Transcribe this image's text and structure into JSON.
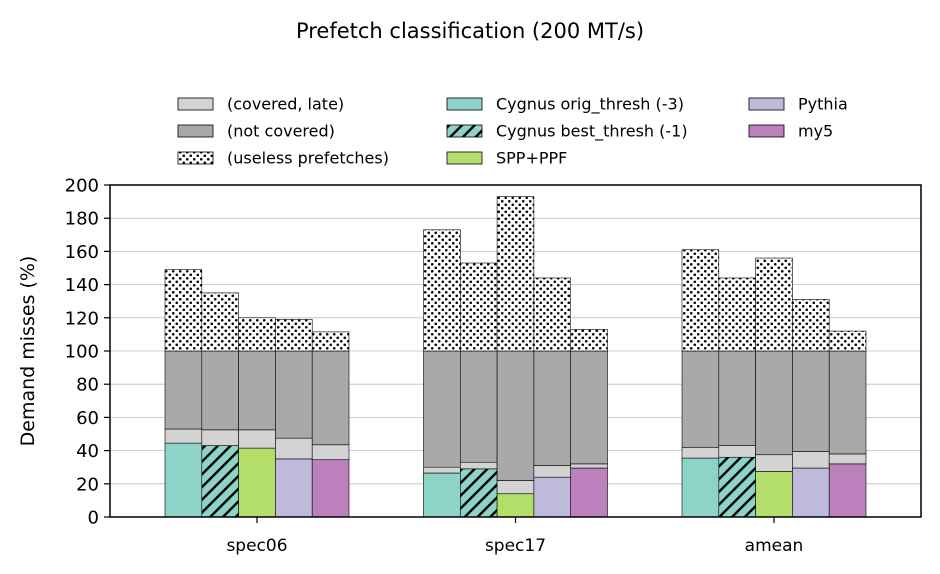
{
  "chart_data": {
    "type": "bar",
    "subtype": "stacked-grouped",
    "title": "Prefetch classification (200 MT/s)",
    "ylabel": "Demand misses (%)",
    "xlabel": "",
    "ylim": [
      0,
      200
    ],
    "yticks": [
      0,
      20,
      40,
      60,
      80,
      100,
      120,
      140,
      160,
      180,
      200
    ],
    "grid": "horizontal",
    "legend_position": "top",
    "categories": [
      "spec06",
      "spec17",
      "amean"
    ],
    "stack_components": [
      {
        "name": "(covered, late)",
        "color": "#d3d3d3",
        "pattern": "solid"
      },
      {
        "name": "(not covered)",
        "color": "#a9a9a9",
        "pattern": "solid"
      },
      {
        "name": "(useless prefetches)",
        "color": "#ffffff",
        "pattern": "dots"
      }
    ],
    "series": [
      {
        "name": "Cygnus orig_thresh (-3)",
        "color": "#8dd3c7",
        "pattern": "solid",
        "covered": [
          44.5,
          26.5,
          35.5
        ],
        "covered_late": [
          8.5,
          3.5,
          6.5
        ],
        "useless": [
          49,
          73,
          61
        ]
      },
      {
        "name": "Cygnus best_thresh (-1)",
        "color": "#8dd3c7",
        "pattern": "hatch",
        "covered": [
          43,
          29,
          36
        ],
        "covered_late": [
          9.5,
          4,
          7
        ],
        "useless": [
          35,
          53,
          44
        ]
      },
      {
        "name": "SPP+PPF",
        "color": "#b3de69",
        "pattern": "solid",
        "covered": [
          41.5,
          14,
          27.5
        ],
        "covered_late": [
          11,
          8,
          10
        ],
        "useless": [
          20,
          93,
          56
        ]
      },
      {
        "name": "Pythia",
        "color": "#bebada",
        "pattern": "solid",
        "covered": [
          35,
          24,
          29.5
        ],
        "covered_late": [
          12.5,
          7,
          10
        ],
        "useless": [
          19,
          44,
          31
        ]
      },
      {
        "name": "my5",
        "color": "#bc80bd",
        "pattern": "solid",
        "covered": [
          34.5,
          29.5,
          32
        ],
        "covered_late": [
          9,
          2.5,
          6
        ],
        "useless": [
          11.5,
          13,
          12
        ]
      }
    ]
  }
}
